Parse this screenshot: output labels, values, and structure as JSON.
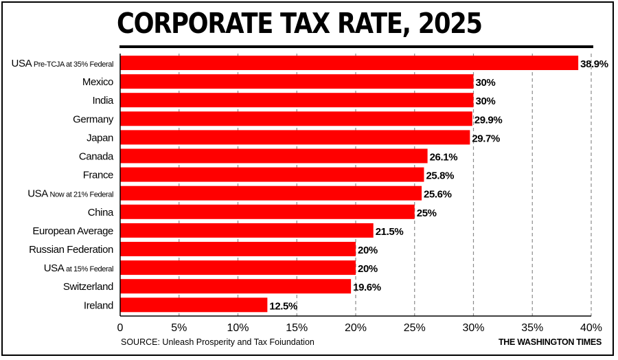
{
  "header": {
    "title": "CORPORATE TAX RATE, 2025"
  },
  "footer": {
    "source": "SOURCE: Unleash Prosperity and Tax Foiundation",
    "brand": "THE WASHINGTON TIMES"
  },
  "chart_data": {
    "type": "bar",
    "orientation": "horizontal",
    "title": "CORPORATE TAX RATE, 2025",
    "categories": [
      {
        "main": "USA",
        "suffix": "Pre-TCJA at 35% Federal"
      },
      {
        "main": "Mexico",
        "suffix": ""
      },
      {
        "main": "India",
        "suffix": ""
      },
      {
        "main": "Germany",
        "suffix": ""
      },
      {
        "main": "Japan",
        "suffix": ""
      },
      {
        "main": "Canada",
        "suffix": ""
      },
      {
        "main": "France",
        "suffix": ""
      },
      {
        "main": "USA",
        "suffix": "Now at 21% Federal"
      },
      {
        "main": "China",
        "suffix": ""
      },
      {
        "main": "European Average",
        "suffix": ""
      },
      {
        "main": "Russian Federation",
        "suffix": ""
      },
      {
        "main": "USA",
        "suffix": "at 15% Federal"
      },
      {
        "main": "Switzerland",
        "suffix": ""
      },
      {
        "main": "Ireland",
        "suffix": ""
      }
    ],
    "values": [
      38.9,
      30,
      30,
      29.9,
      29.7,
      26.1,
      25.8,
      25.6,
      25,
      21.5,
      20,
      20,
      19.6,
      12.5
    ],
    "value_labels": [
      "38.9%",
      "30%",
      "30%",
      "29.9%",
      "29.7%",
      "26.1%",
      "25.8%",
      "25.6%",
      "25%",
      "21.5%",
      "20%",
      "20%",
      "19.6%",
      "12.5%"
    ],
    "xlim": [
      0,
      40
    ],
    "xticks": [
      0,
      5,
      10,
      15,
      20,
      25,
      30,
      35,
      40
    ],
    "xtick_labels": [
      "0",
      "5%",
      "10%",
      "15%",
      "20%",
      "25%",
      "30%",
      "35%",
      "40%"
    ],
    "grid": "vertical dashed",
    "bar_color": "#ff0000",
    "grid_color": "#8a8a8a",
    "text_color": "#000000"
  }
}
